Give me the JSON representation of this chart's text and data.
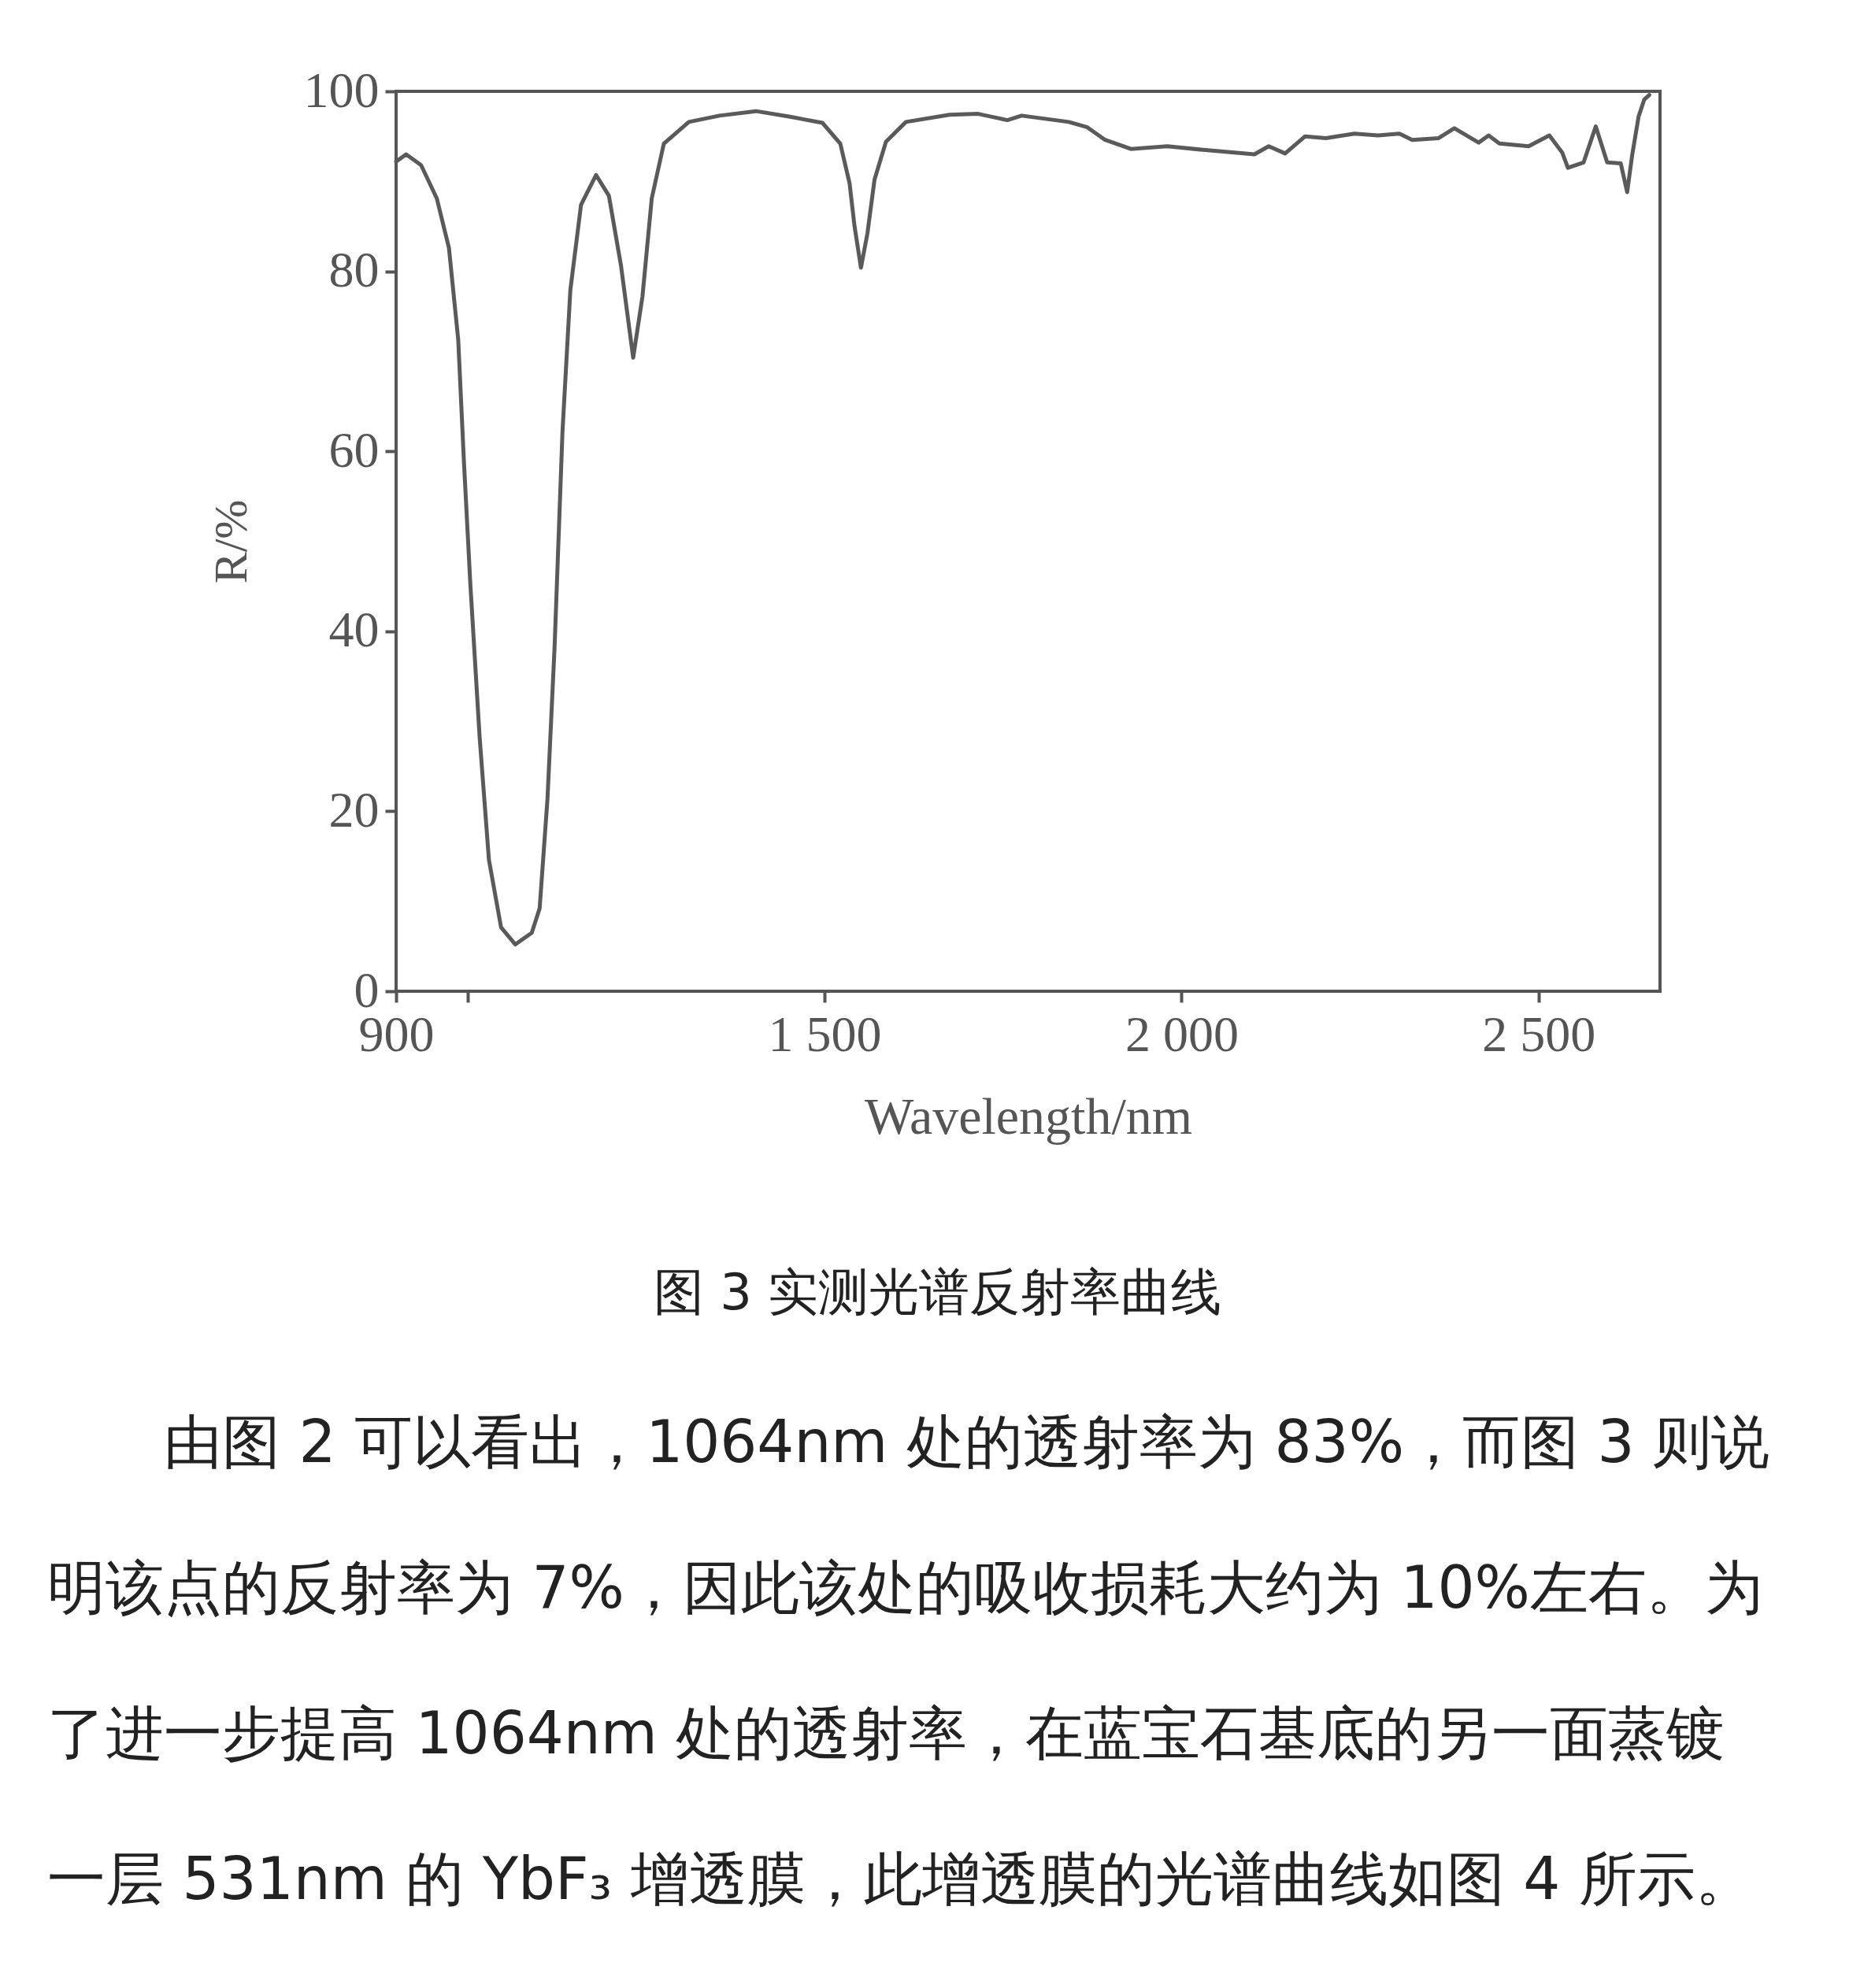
{
  "chart_data": {
    "type": "line",
    "title": "图 3  实测光谱反射率曲线",
    "xlabel": "Wavelength/nm",
    "ylabel": "R/%",
    "annotations": [
      "由图 2 可以看出，1064nm 处的透射率为 83%，而图 3 则说",
      "明该点的反射率为 7%，因此该处的吸收损耗大约为 10%左右。为",
      "了进一步提高 1064nm 处的透射率，在蓝宝石基底的另一面蒸镀",
      "一层 531nm 的 YbF₃ 增透膜，此增透膜的光谱曲线如图 4 所示。"
    ],
    "color": "#5a5a5a",
    "x": [
      900,
      914,
      935,
      957,
      974,
      987,
      995,
      1004,
      1017,
      1030,
      1047,
      1067,
      1090,
      1101,
      1112,
      1122,
      1133,
      1144,
      1159,
      1180,
      1198,
      1215,
      1232,
      1245,
      1258,
      1275,
      1310,
      1353,
      1404,
      1450,
      1497,
      1522,
      1535,
      1542,
      1551,
      1560,
      1570,
      1586,
      1614,
      1675,
      1715,
      1756,
      1776,
      1842,
      1868,
      1893,
      1929,
      1980,
      2030,
      2102,
      2122,
      2145,
      2173,
      2202,
      2242,
      2275,
      2305,
      2323,
      2360,
      2382,
      2416,
      2430,
      2445,
      2486,
      2515,
      2533,
      2541,
      2563,
      2580,
      2596,
      2615,
      2624,
      2631,
      2640,
      2648,
      2655
    ],
    "values": [
      92.2,
      93.0,
      91.8,
      88.1,
      82.6,
      72.4,
      58.8,
      45.2,
      28.2,
      14.6,
      7.1,
      5.2,
      6.5,
      9.2,
      21.4,
      38.4,
      62.2,
      77.9,
      87.4,
      90.7,
      88.4,
      80.6,
      70.4,
      77.2,
      88.1,
      94.2,
      96.6,
      97.3,
      97.8,
      97.2,
      96.5,
      94.2,
      89.8,
      85.0,
      80.4,
      84.2,
      90.2,
      94.4,
      96.6,
      97.4,
      97.5,
      96.8,
      97.3,
      96.6,
      96.0,
      94.6,
      93.6,
      93.9,
      93.5,
      93.0,
      93.9,
      93.1,
      95.0,
      94.8,
      95.3,
      95.1,
      95.3,
      94.6,
      94.8,
      95.9,
      94.3,
      95.1,
      94.2,
      93.9,
      95.1,
      93.2,
      91.5,
      92.1,
      96.1,
      92.1,
      92.0,
      88.8,
      92.9,
      97.2,
      99.1,
      99.6
    ],
    "xlim": [
      900,
      2670
    ],
    "ylim": [
      0,
      100
    ],
    "xticks": [
      900,
      {
        "value": 1000,
        "label": null
      },
      {
        "value": 1500,
        "label": "1 500"
      },
      {
        "value": 2000,
        "label": "2 000"
      },
      {
        "value": 2500,
        "label": "2 500"
      }
    ],
    "yticks": [
      0,
      20,
      40,
      60,
      80,
      100
    ]
  }
}
